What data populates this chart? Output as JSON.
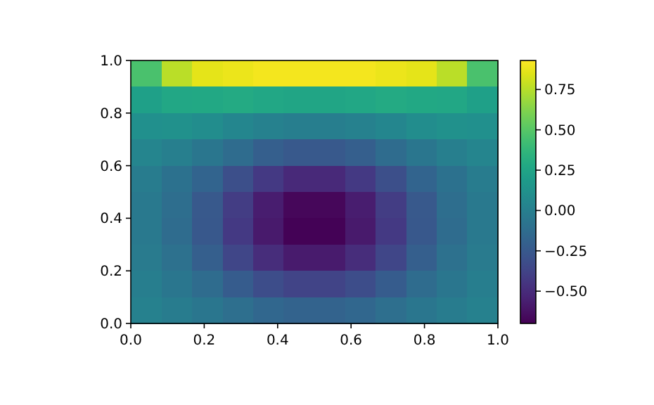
{
  "chart_data": {
    "type": "heatmap",
    "x": [
      0.042,
      0.125,
      0.208,
      0.292,
      0.375,
      0.458,
      0.542,
      0.625,
      0.708,
      0.792,
      0.875,
      0.958
    ],
    "y": [
      0.95,
      0.85,
      0.75,
      0.65,
      0.55,
      0.45,
      0.35,
      0.25,
      0.15,
      0.05
    ],
    "xlim": [
      0,
      1
    ],
    "ylim": [
      0,
      1
    ],
    "xticks": [
      {
        "value": 0,
        "label": "0.0"
      },
      {
        "value": 0.2,
        "label": "0.2"
      },
      {
        "value": 0.4,
        "label": "0.4"
      },
      {
        "value": 0.6,
        "label": "0.6"
      },
      {
        "value": 0.8,
        "label": "0.8"
      },
      {
        "value": 1,
        "label": "1.0"
      }
    ],
    "yticks": [
      {
        "value": 0,
        "label": "0.0"
      },
      {
        "value": 0.2,
        "label": "0.2"
      },
      {
        "value": 0.4,
        "label": "0.4"
      },
      {
        "value": 0.6,
        "label": "0.6"
      },
      {
        "value": 0.8,
        "label": "0.8"
      },
      {
        "value": 1,
        "label": "1.0"
      }
    ],
    "cells": [
      [
        0.46,
        0.76,
        0.86,
        0.88,
        0.9,
        0.9,
        0.9,
        0.9,
        0.88,
        0.86,
        0.76,
        0.46
      ],
      [
        0.22,
        0.27,
        0.28,
        0.29,
        0.27,
        0.26,
        0.26,
        0.27,
        0.29,
        0.28,
        0.27,
        0.22
      ],
      [
        0.11,
        0.12,
        0.09,
        0.05,
        0.01,
        -0.01,
        -0.01,
        0.01,
        0.05,
        0.09,
        0.12,
        0.11
      ],
      [
        0.04,
        0,
        -0.06,
        -0.13,
        -0.21,
        -0.25,
        -0.25,
        -0.21,
        -0.13,
        -0.06,
        0,
        0.04
      ],
      [
        -0.02,
        -0.09,
        -0.18,
        -0.31,
        -0.43,
        -0.51,
        -0.51,
        -0.43,
        -0.31,
        -0.18,
        -0.09,
        -0.02
      ],
      [
        -0.04,
        -0.12,
        -0.25,
        -0.41,
        -0.57,
        -0.67,
        -0.67,
        -0.57,
        -0.41,
        -0.25,
        -0.12,
        -0.04
      ],
      [
        -0.04,
        -0.13,
        -0.26,
        -0.43,
        -0.59,
        -0.69,
        -0.69,
        -0.59,
        -0.43,
        -0.26,
        -0.13,
        -0.04
      ],
      [
        -0.03,
        -0.1,
        -0.21,
        -0.36,
        -0.49,
        -0.58,
        -0.58,
        -0.49,
        -0.36,
        -0.21,
        -0.1,
        -0.03
      ],
      [
        -0.01,
        -0.06,
        -0.13,
        -0.23,
        -0.32,
        -0.37,
        -0.37,
        -0.32,
        -0.23,
        -0.13,
        -0.06,
        -0.01
      ],
      [
        0.01,
        -0.02,
        -0.06,
        -0.11,
        -0.16,
        -0.19,
        -0.19,
        -0.16,
        -0.11,
        -0.06,
        -0.02,
        0.01
      ]
    ],
    "clim": [
      -0.7,
      0.93
    ],
    "cticks": [
      {
        "value": -0.5,
        "label": "−0.50"
      },
      {
        "value": -0.25,
        "label": "−0.25"
      },
      {
        "value": 0,
        "label": "0.00"
      },
      {
        "value": 0.25,
        "label": "0.25"
      },
      {
        "value": 0.5,
        "label": "0.50"
      },
      {
        "value": 0.75,
        "label": "0.75"
      }
    ]
  }
}
